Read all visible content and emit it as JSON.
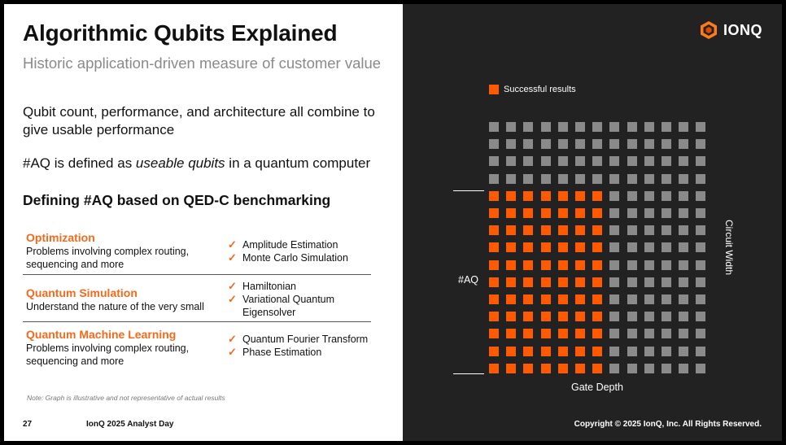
{
  "slide": {
    "title": "Algorithmic Qubits Explained",
    "subtitle": "Historic application-driven measure of customer value",
    "paragraph1": "Qubit count, performance, and architecture all combine to give usable performance",
    "paragraph2_prefix": "#AQ is defined as ",
    "paragraph2_emphasis": "useable qubits",
    "paragraph2_suffix": " in a quantum computer",
    "section_heading": "Defining #AQ based on QED-C benchmarking",
    "rows": [
      {
        "title": "Optimization",
        "description": "Problems involving complex routing, sequencing and more",
        "items": [
          "Amplitude Estimation",
          "Monte Carlo Simulation"
        ]
      },
      {
        "title": "Quantum Simulation",
        "description": "Understand the nature of the very small",
        "items": [
          "Hamiltonian",
          "Variational Quantum Eigensolver"
        ]
      },
      {
        "title": "Quantum Machine Learning",
        "description": "Problems involving complex routing, sequencing and more",
        "items": [
          "Quantum Fourier Transform",
          "Phase Estimation"
        ]
      }
    ],
    "check_glyph": "✓",
    "note": "Note: Graph is illustrative and not representative of actual results",
    "page_number": "27",
    "footer_left": "IonQ 2025 Analyst Day",
    "copyright": "Copyright © 2025 IonQ, Inc. All Rights Reserved."
  },
  "brand": {
    "logo_text": "IONQ",
    "logo_icon": "ionq-hexagon-icon",
    "accent_color": "#ff5a00",
    "inactive_color": "#8a8a8a"
  },
  "chart_data": {
    "type": "heatmap",
    "columns": 13,
    "rows": 15,
    "successful_columns": 7,
    "successful_rows": 11,
    "legend": "Successful results",
    "y_marker_label": "#AQ",
    "y_axis_label": "Circuit Width",
    "x_axis_label": "Gate Depth"
  }
}
